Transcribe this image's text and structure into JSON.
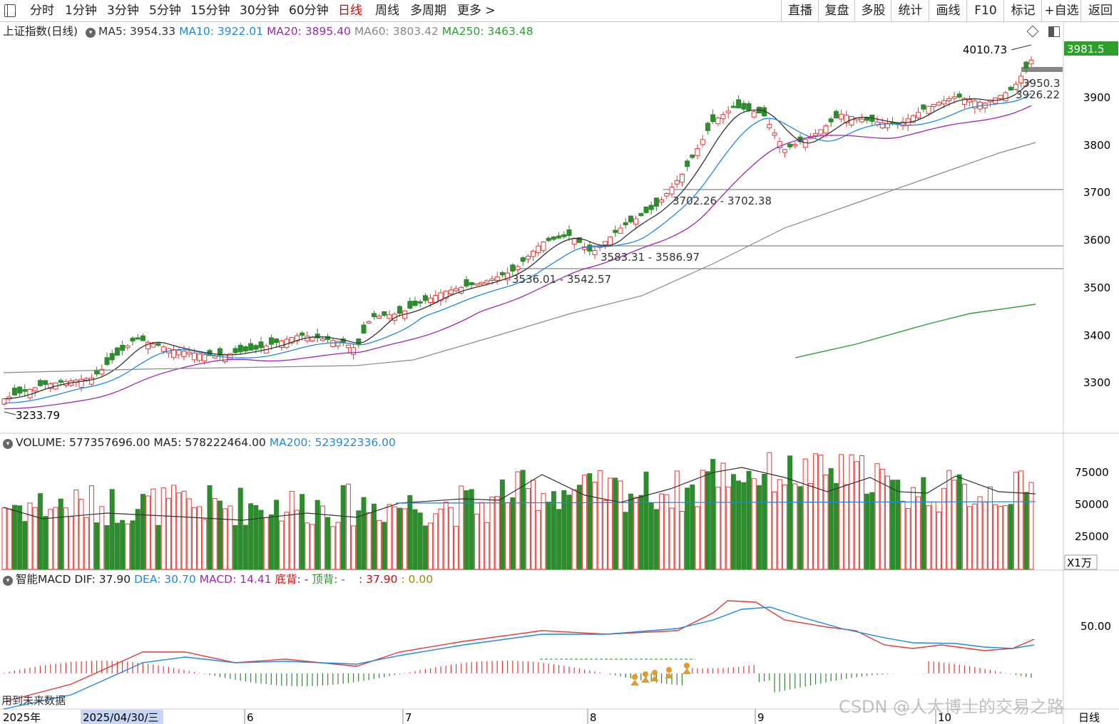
{
  "toolbar": {
    "periods": [
      "分时",
      "1分钟",
      "3分钟",
      "5分钟",
      "15分钟",
      "30分钟",
      "60分钟",
      "日线",
      "周线",
      "多周期",
      "更多 >"
    ],
    "active": "日线",
    "right": [
      "直播",
      "复盘",
      "多股",
      "统计",
      "画线",
      "F10",
      "标记",
      "+自选",
      "返回"
    ]
  },
  "price_header": {
    "name": "上证指数(日线)",
    "ma5": "MA5: 3954.33",
    "ma10": "MA10: 3922.01",
    "ma20": "MA20: 3895.40",
    "ma60": "MA60: 3803.42",
    "ma250": "MA250: 3463.48",
    "colors": {
      "ma5": "#333333",
      "ma10": "#1e88e5",
      "ma20": "#9c27b0",
      "ma60": "#888888",
      "ma250": "#2e9e2e"
    }
  },
  "volume_header": {
    "volume": "VOLUME: 577357696.00",
    "ma5": "MA5: 578222464.00",
    "ma200": "MA200: 523922336.00"
  },
  "macd_header": {
    "title": "智能MACD",
    "dif": "DIF: 37.90",
    "dea": "DEA: 30.70",
    "macd": "MACD: 14.41",
    "bottom": "底背: -",
    "top": "顶背: -",
    "extra1": ": 37.90",
    "extra2": ": 0.00"
  },
  "price_axis": {
    "ticks": [
      "3900",
      "3800",
      "3700",
      "3600",
      "3500",
      "3400",
      "3300"
    ],
    "current": "3981.5"
  },
  "volume_axis": {
    "ticks": [
      "75000",
      "50000",
      "25000"
    ],
    "unit": "X1万"
  },
  "macd_axis": {
    "ticks": [
      "50.00"
    ]
  },
  "annotations": {
    "high": "4010.73",
    "low": "3233.79",
    "line1": "3702.26 - 3702.38",
    "line2": "3583.31 - 3586.97",
    "line3": "3536.01 - 3542.57",
    "ma_label1": "3950.3",
    "ma_label2": "3926.22"
  },
  "future_note": "用到未来数据",
  "date_axis": {
    "year": "2025年",
    "cursor": "2025/04/30/三",
    "months": [
      "6",
      "7",
      "8",
      "9",
      "10"
    ],
    "period": "日线"
  },
  "watermark": "CSDN @人大博士的交易之路",
  "colors": {
    "up": "#e53935",
    "down": "#2e8b2e",
    "bg": "#ffffff",
    "grid": "#c8c8c8"
  }
}
